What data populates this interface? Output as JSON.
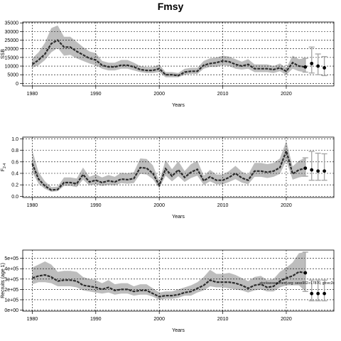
{
  "figure_title": "Fmsy",
  "colors": {
    "band": "#bdbdbd",
    "line": "#2b2b2b",
    "grid": "#000000",
    "forecast_bar": "#a8a8a8",
    "points": "#000000"
  },
  "chart_data": [
    {
      "type": "line",
      "title": "",
      "xlabel": "Years",
      "ylabel": "SSB",
      "xlim": [
        1978.5,
        2027.5
      ],
      "ylim": [
        -1500,
        35500
      ],
      "xticks": [
        1980,
        1990,
        2000,
        2010,
        2020
      ],
      "yticks": [
        0,
        5000,
        10000,
        15000,
        20000,
        25000,
        30000,
        35000
      ],
      "ytick_labels": [
        "0",
        "5000",
        "10000",
        "15000",
        "20000",
        "25000",
        "30000",
        "35000"
      ],
      "grid": true,
      "years": [
        1980,
        1981,
        1982,
        1983,
        1984,
        1985,
        1986,
        1987,
        1988,
        1989,
        1990,
        1991,
        1992,
        1993,
        1994,
        1995,
        1996,
        1997,
        1998,
        1999,
        2000,
        2001,
        2002,
        2003,
        2004,
        2005,
        2006,
        2007,
        2008,
        2009,
        2010,
        2011,
        2012,
        2013,
        2014,
        2015,
        2016,
        2017,
        2018,
        2019,
        2020,
        2021,
        2022,
        2023
      ],
      "median": [
        11000,
        13500,
        17000,
        23000,
        25000,
        21000,
        21000,
        18500,
        16500,
        14500,
        13500,
        10500,
        9500,
        9500,
        10500,
        10500,
        9500,
        8000,
        7500,
        7500,
        8500,
        5000,
        5000,
        4500,
        6500,
        7000,
        7000,
        10500,
        11500,
        12000,
        13000,
        12500,
        11000,
        10000,
        11000,
        8500,
        8500,
        8500,
        8000,
        9000,
        7000,
        12000,
        10000,
        9500
      ],
      "lower": [
        9000,
        10500,
        13500,
        18000,
        20500,
        16000,
        16500,
        14500,
        13000,
        11500,
        10500,
        8500,
        7500,
        7500,
        8500,
        8500,
        7500,
        6500,
        6000,
        6000,
        6500,
        3500,
        3500,
        3500,
        5000,
        5500,
        5500,
        8500,
        9500,
        9500,
        10500,
        10000,
        8500,
        8000,
        8500,
        6500,
        6500,
        6500,
        6000,
        7000,
        5000,
        8500,
        7000,
        6500
      ],
      "upper": [
        14500,
        18000,
        23500,
        32000,
        33500,
        27000,
        27000,
        24000,
        21000,
        18500,
        17500,
        13000,
        12000,
        12000,
        13500,
        13500,
        12000,
        10000,
        9500,
        9500,
        11000,
        6500,
        6500,
        6000,
        8500,
        9000,
        9000,
        13000,
        14500,
        15000,
        16000,
        15500,
        14000,
        12500,
        14000,
        11000,
        11000,
        11000,
        10000,
        11500,
        9000,
        16000,
        14000,
        14500
      ],
      "forecast": {
        "years": [
          2024,
          2025,
          2026
        ],
        "median": [
          11500,
          10000,
          9000
        ],
        "lower": [
          6000,
          5000,
          4500
        ],
        "upper": [
          21000,
          17000,
          15500
        ]
      }
    },
    {
      "type": "line",
      "title": "",
      "xlabel": "Years",
      "ylabel": "F2-4",
      "ylabel_main": "F",
      "ylabel_sub": "2-4",
      "xlim": [
        1978.5,
        2027.5
      ],
      "ylim": [
        -0.02,
        1.03
      ],
      "xticks": [
        1980,
        1990,
        2000,
        2010,
        2020
      ],
      "yticks": [
        0.0,
        0.2,
        0.4,
        0.6,
        0.8,
        1.0
      ],
      "ytick_labels": [
        "0.0",
        "0.2",
        "0.4",
        "0.6",
        "0.8",
        "1.0"
      ],
      "grid": true,
      "years": [
        1980,
        1981,
        1982,
        1983,
        1984,
        1985,
        1986,
        1987,
        1988,
        1989,
        1990,
        1991,
        1992,
        1993,
        1994,
        1995,
        1996,
        1997,
        1998,
        1999,
        2000,
        2001,
        2002,
        2003,
        2004,
        2005,
        2006,
        2007,
        2008,
        2009,
        2010,
        2011,
        2012,
        2013,
        2014,
        2015,
        2016,
        2017,
        2018,
        2019,
        2020,
        2021,
        2022,
        2023
      ],
      "median": [
        0.57,
        0.3,
        0.18,
        0.11,
        0.12,
        0.24,
        0.24,
        0.22,
        0.38,
        0.25,
        0.28,
        0.24,
        0.27,
        0.25,
        0.3,
        0.29,
        0.31,
        0.5,
        0.49,
        0.4,
        0.19,
        0.48,
        0.35,
        0.46,
        0.33,
        0.42,
        0.47,
        0.27,
        0.34,
        0.28,
        0.28,
        0.33,
        0.4,
        0.32,
        0.28,
        0.44,
        0.44,
        0.42,
        0.44,
        0.5,
        0.79,
        0.39,
        0.46,
        0.49
      ],
      "lower": [
        0.42,
        0.22,
        0.13,
        0.08,
        0.09,
        0.18,
        0.18,
        0.16,
        0.29,
        0.19,
        0.21,
        0.18,
        0.2,
        0.19,
        0.23,
        0.22,
        0.23,
        0.39,
        0.38,
        0.3,
        0.14,
        0.36,
        0.26,
        0.35,
        0.25,
        0.32,
        0.36,
        0.2,
        0.26,
        0.21,
        0.21,
        0.25,
        0.3,
        0.24,
        0.21,
        0.34,
        0.34,
        0.32,
        0.34,
        0.39,
        0.62,
        0.29,
        0.33,
        0.35
      ],
      "upper": [
        0.8,
        0.42,
        0.26,
        0.16,
        0.17,
        0.33,
        0.33,
        0.31,
        0.5,
        0.34,
        0.38,
        0.33,
        0.37,
        0.34,
        0.41,
        0.4,
        0.42,
        0.66,
        0.65,
        0.54,
        0.27,
        0.63,
        0.47,
        0.61,
        0.44,
        0.56,
        0.62,
        0.36,
        0.46,
        0.38,
        0.38,
        0.44,
        0.53,
        0.43,
        0.38,
        0.58,
        0.58,
        0.56,
        0.58,
        0.66,
        0.96,
        0.52,
        0.62,
        0.67
      ],
      "forecast": {
        "years": [
          2024,
          2025,
          2026
        ],
        "median": [
          0.46,
          0.44,
          0.44
        ],
        "lower": [
          0.28,
          0.28,
          0.28
        ],
        "upper": [
          0.78,
          0.75,
          0.74
        ]
      }
    },
    {
      "type": "line",
      "title": "",
      "xlabel": "Years",
      "ylabel": "Recruits (age 1)",
      "xlim": [
        1978.5,
        2027.5
      ],
      "ylim": [
        -0.1,
        5.8
      ],
      "xticks": [
        1980,
        1990,
        2000,
        2010,
        2020
      ],
      "yticks": [
        0,
        1,
        2,
        3,
        4,
        5
      ],
      "ytick_labels": [
        "0e+00",
        "1e+05",
        "2e+05",
        "3e+05",
        "4e+05",
        "5e+05"
      ],
      "grid": true,
      "annotation": "stockassessment.org: sess902-r17870, git:ec2c",
      "years": [
        1980,
        1981,
        1982,
        1983,
        1984,
        1985,
        1986,
        1987,
        1988,
        1989,
        1990,
        1991,
        1992,
        1993,
        1994,
        1995,
        1996,
        1997,
        1998,
        1999,
        2000,
        2001,
        2002,
        2003,
        2004,
        2005,
        2006,
        2007,
        2008,
        2009,
        2010,
        2011,
        2012,
        2013,
        2014,
        2015,
        2016,
        2017,
        2018,
        2019,
        2020,
        2021,
        2022,
        2023
      ],
      "median": [
        3.1,
        3.3,
        3.4,
        3.2,
        2.8,
        2.9,
        2.9,
        2.8,
        2.4,
        2.3,
        2.2,
        2.0,
        2.2,
        1.9,
        2.0,
        2.0,
        1.8,
        1.9,
        1.9,
        1.6,
        1.3,
        1.4,
        1.4,
        1.5,
        1.7,
        1.8,
        2.1,
        2.4,
        2.9,
        2.7,
        2.7,
        2.7,
        2.6,
        2.4,
        2.1,
        2.4,
        2.5,
        2.2,
        2.3,
        2.8,
        3.1,
        3.3,
        3.7,
        3.6
      ],
      "lower": [
        2.5,
        2.7,
        2.7,
        2.6,
        2.3,
        2.3,
        2.3,
        2.2,
        1.9,
        1.8,
        1.7,
        1.6,
        1.7,
        1.5,
        1.6,
        1.6,
        1.4,
        1.5,
        1.5,
        1.3,
        1.0,
        1.1,
        1.1,
        1.2,
        1.4,
        1.4,
        1.7,
        1.9,
        2.3,
        2.2,
        2.2,
        2.1,
        2.0,
        1.9,
        1.7,
        1.9,
        2.0,
        1.8,
        1.8,
        2.2,
        2.4,
        2.4,
        2.4,
        1.8
      ],
      "upper": [
        4.1,
        4.4,
        4.7,
        4.4,
        3.7,
        3.8,
        3.8,
        3.7,
        3.2,
        3.0,
        2.9,
        2.6,
        2.9,
        2.5,
        2.6,
        2.6,
        2.3,
        2.5,
        2.5,
        2.1,
        1.7,
        1.8,
        1.8,
        2.0,
        2.2,
        2.4,
        2.7,
        3.2,
        3.9,
        3.5,
        3.5,
        3.6,
        3.4,
        3.1,
        2.8,
        3.2,
        3.3,
        2.9,
        3.0,
        3.7,
        4.1,
        4.6,
        5.5,
        5.6
      ],
      "forecast": {
        "years": [
          2024,
          2025,
          2026
        ],
        "median": [
          1.6,
          1.6,
          1.6
        ],
        "lower": [
          0.9,
          0.9,
          0.9
        ],
        "upper": [
          2.9,
          2.9,
          2.9
        ]
      },
      "forecast_first": {
        "year": 2023,
        "median": 3.6,
        "lower": 1.8,
        "upper": 5.6
      }
    }
  ]
}
